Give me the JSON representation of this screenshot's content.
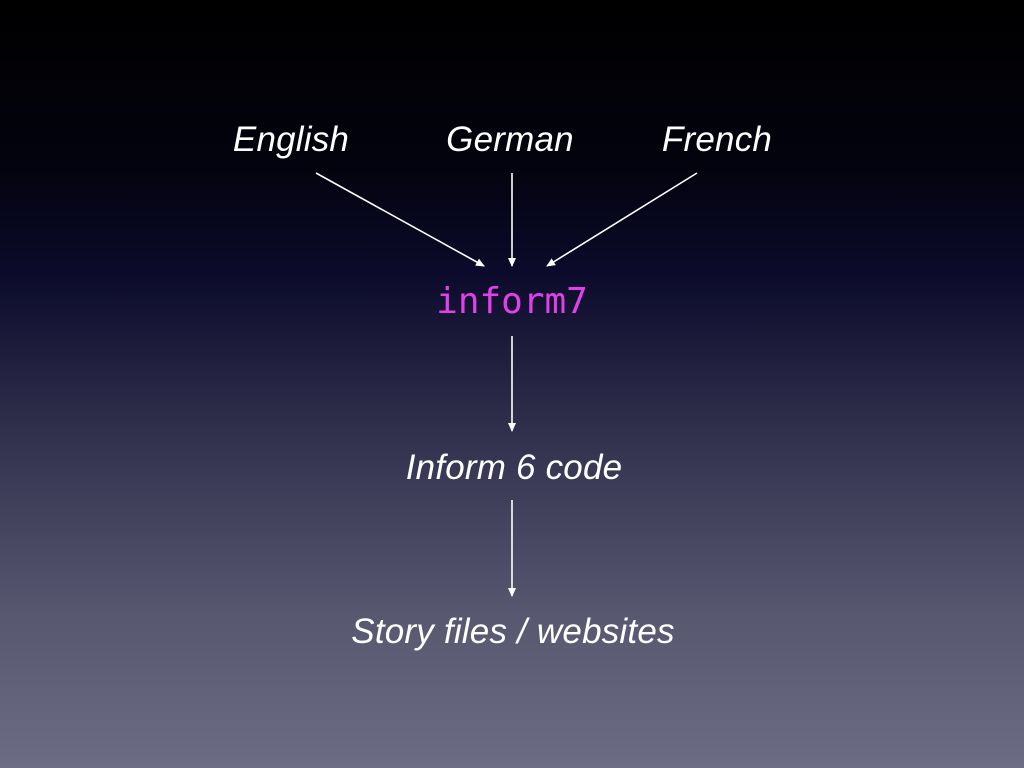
{
  "diagram": {
    "inputs": [
      {
        "label": "English"
      },
      {
        "label": "German"
      },
      {
        "label": "French"
      }
    ],
    "compiler": {
      "label": "inform7",
      "color": "#e040e8"
    },
    "intermediate": {
      "label": "Inform 6 code"
    },
    "output": {
      "label": "Story files / websites"
    },
    "colors": {
      "text": "#ffffff",
      "arrow": "#ffffff"
    }
  }
}
